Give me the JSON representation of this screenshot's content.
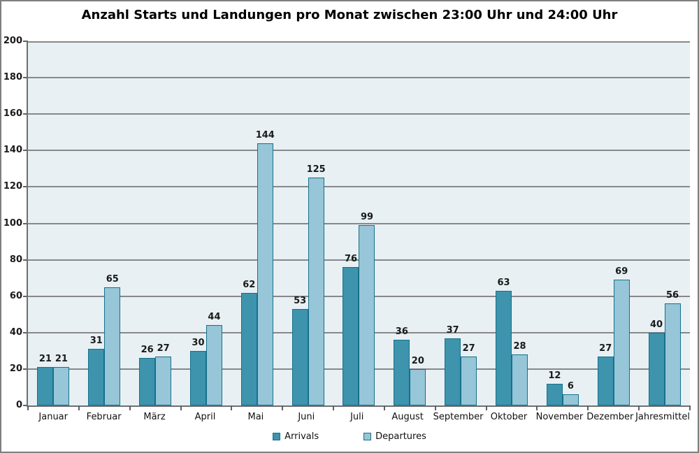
{
  "title": "Anzahl Starts und Landungen pro Monat zwischen 23:00 Uhr und 24:00 Uhr",
  "chart_data": {
    "type": "bar",
    "categories": [
      "Januar",
      "Februar",
      "März",
      "April",
      "Mai",
      "Juni",
      "Juli",
      "August",
      "September",
      "Oktober",
      "November",
      "Dezember",
      "Jahresmittel"
    ],
    "series": [
      {
        "name": "Arrivals",
        "values": [
          21,
          31,
          26,
          30,
          62,
          53,
          76,
          36,
          37,
          63,
          12,
          27,
          40
        ],
        "fill": "#3e94ac",
        "border": "#16708c"
      },
      {
        "name": "Departures",
        "values": [
          21,
          65,
          27,
          44,
          144,
          125,
          99,
          20,
          27,
          28,
          6,
          69,
          56
        ],
        "fill": "#96c6d7",
        "border": "#16708c"
      }
    ],
    "ylabel": "",
    "xlabel": "",
    "ylim": [
      0,
      200
    ],
    "ytick_step": 20,
    "grid": true,
    "legend_position": "bottom-center",
    "data_labels": true,
    "colors": {
      "plot_background": "#e8f0f4",
      "gridline": "#87888a",
      "axis": "#6e6f71",
      "tick": "#5f6062",
      "label_text": "#1a1a1a"
    }
  },
  "legend": {
    "items": [
      {
        "label": "Arrivals"
      },
      {
        "label": "Departures"
      }
    ]
  }
}
